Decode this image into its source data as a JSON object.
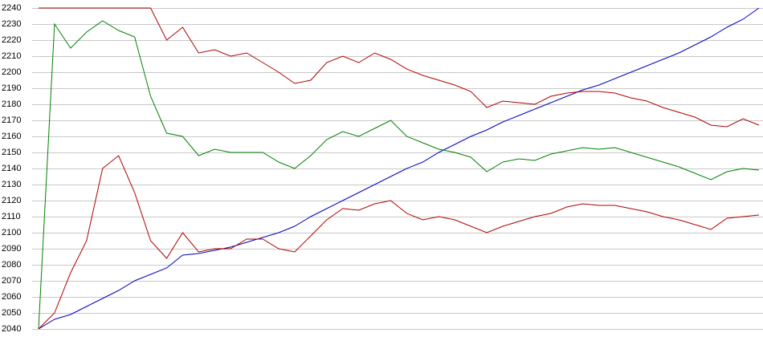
{
  "chart_data": {
    "type": "line",
    "categories": [
      null,
      null,
      null,
      null,
      null,
      null,
      null,
      null,
      null,
      null,
      null,
      null,
      null,
      null,
      null,
      null,
      null,
      null,
      null,
      null,
      null,
      null,
      null,
      null,
      null,
      null,
      null,
      null,
      null,
      null,
      null,
      null,
      null,
      null,
      null,
      null,
      null,
      null,
      null,
      null,
      null,
      null,
      null,
      null,
      null,
      null
    ],
    "series": [
      {
        "color": "#0000c0",
        "values": [
          2040,
          2046,
          2049,
          2054,
          2059,
          2064,
          2070,
          2074,
          2078,
          2086,
          2087,
          2089,
          2091,
          2094,
          2097,
          2100,
          2104,
          2110,
          2115,
          2120,
          2125,
          2130,
          2135,
          2140,
          2144,
          2150,
          2155,
          2160,
          2164,
          2169,
          2173,
          2177,
          2181,
          2185,
          2189,
          2192,
          2196,
          2200,
          2204,
          2208,
          2212,
          2217,
          2222,
          2228,
          2233,
          2240
        ]
      },
      {
        "color": "#b00000",
        "values": [
          2240,
          2240,
          2240,
          2240,
          2240,
          2240,
          2240,
          2240,
          2220,
          2228,
          2212,
          2214,
          2210,
          2212,
          2206,
          2200,
          2193,
          2195,
          2206,
          2210,
          2206,
          2212,
          2208,
          2202,
          2198,
          2195,
          2192,
          2188,
          2178,
          2182,
          2181,
          2180,
          2185,
          2187,
          2188,
          2188,
          2187,
          2184,
          2182,
          2178,
          2175,
          2172,
          2167,
          2166,
          2171,
          2167
        ]
      },
      {
        "color": "#008000",
        "values": [
          2040,
          2230,
          2215,
          2225,
          2232,
          2226,
          2222,
          2185,
          2162,
          2160,
          2148,
          2152,
          2150,
          2150,
          2150,
          2144,
          2140,
          2148,
          2158,
          2163,
          2160,
          2165,
          2170,
          2160,
          2156,
          2152,
          2150,
          2147,
          2138,
          2144,
          2146,
          2145,
          2149,
          2151,
          2153,
          2152,
          2153,
          2150,
          2147,
          2144,
          2141,
          2137,
          2133,
          2138,
          2140,
          2139
        ]
      },
      {
        "color": "#b00000",
        "values": [
          2040,
          2050,
          2075,
          2095,
          2140,
          2148,
          2125,
          2095,
          2084,
          2100,
          2088,
          2090,
          2090,
          2096,
          2096,
          2090,
          2088,
          2098,
          2108,
          2115,
          2114,
          2118,
          2120,
          2112,
          2108,
          2110,
          2108,
          2104,
          2100,
          2104,
          2107,
          2110,
          2112,
          2116,
          2118,
          2117,
          2117,
          2115,
          2113,
          2110,
          2108,
          2105,
          2102,
          2109,
          2110,
          2111
        ]
      }
    ],
    "ylim": [
      2040,
      2240
    ],
    "yticks": [
      2040,
      2050,
      2060,
      2070,
      2080,
      2090,
      2100,
      2110,
      2120,
      2130,
      2140,
      2150,
      2160,
      2170,
      2180,
      2190,
      2200,
      2210,
      2220,
      2230,
      2240
    ],
    "grid": true
  }
}
